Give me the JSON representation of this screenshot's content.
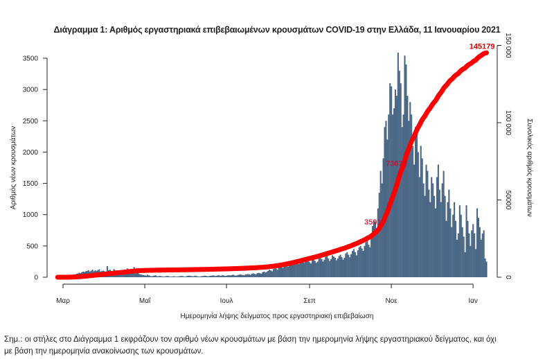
{
  "title": "Διάγραμμα 1: Αριθμός εργαστηριακά επιβεβαιωμένων κρουσμάτων COVID-19 στην Ελλάδα, 11 Ιανουαρίου 2021",
  "note_line1": "Σημ.: οι στήλες στο Διάγραμμα 1 εκφράζουν τον αριθμό νέων κρουσμάτων με βάση την ημερομηνία λήψης εργαστηριακού δείγματος, και όχι",
  "note_line2": "με βάση την ημερομηνία ανακοίνωσης των κρουσμάτων.",
  "chart_data": {
    "type": "bar+line",
    "title": "Διάγραμμα 1: Αριθμός εργαστηριακά επιβεβαιωμένων κρουσμάτων COVID-19 στην Ελλάδα, 11 Ιανουαρίου 2021",
    "xlabel": "Ημερομηνία λήψης δείγματος προς εργαστηριακή επιβεβαίωση",
    "ylabel": "Αριθμός νέων κρουσμάτων",
    "y2label": "Συνολικός αριθμός κρουσμάτων",
    "x_range": [
      "2020-02-26",
      "2021-01-11"
    ],
    "x_ticks": [
      {
        "label": "Μαρ",
        "date": "2020-03-01"
      },
      {
        "label": "Μαΐ",
        "date": "2020-05-01"
      },
      {
        "label": "Ιουλ",
        "date": "2020-07-01"
      },
      {
        "label": "Σεπ",
        "date": "2020-09-01"
      },
      {
        "label": "Νοε",
        "date": "2020-11-01"
      },
      {
        "label": "Ιαν",
        "date": "2021-01-01"
      }
    ],
    "ylim": [
      0,
      3500
    ],
    "y_ticks": [
      "0",
      "500",
      "1000",
      "1500",
      "2000",
      "2500",
      "3000",
      "3500"
    ],
    "y2lim": [
      0,
      150000
    ],
    "y2_ticks": [
      {
        "label": "0",
        "value": 0
      },
      {
        "label": "50000",
        "value": 50000
      },
      {
        "label": "100 000",
        "value": 100000
      },
      {
        "label": "150 000",
        "value": 150000
      }
    ],
    "colors": {
      "bars": "#4b6886",
      "cumulative": "#ff0000"
    },
    "series": [
      {
        "type": "bar",
        "note": "daily new cases by sample date, from 2020-02-26",
        "values": [
          1,
          1,
          0,
          2,
          0,
          3,
          5,
          8,
          12,
          20,
          25,
          30,
          45,
          40,
          55,
          60,
          70,
          65,
          80,
          90,
          85,
          95,
          100,
          110,
          90,
          105,
          120,
          95,
          110,
          100,
          115,
          125,
          90,
          100,
          105,
          95,
          80,
          178,
          110,
          120,
          100,
          95,
          130,
          110,
          90,
          80,
          105,
          100,
          95,
          85,
          120,
          110,
          140,
          110,
          95,
          100,
          80,
          162,
          60,
          90,
          70,
          50,
          45,
          40,
          35,
          30,
          25,
          40,
          30,
          20,
          15,
          20,
          25,
          30,
          18,
          12,
          22,
          16,
          14,
          10,
          12,
          18,
          20,
          15,
          9,
          11,
          14,
          16,
          8,
          10,
          12,
          15,
          20,
          18,
          14,
          9,
          16,
          22,
          25,
          20,
          18,
          14,
          20,
          24,
          16,
          12,
          10,
          15,
          18,
          22,
          25,
          20,
          14,
          18,
          22,
          26,
          30,
          24,
          20,
          28,
          30,
          25,
          22,
          35,
          28,
          20,
          26,
          30,
          32,
          28,
          35,
          40,
          30,
          25,
          32,
          38,
          45,
          40,
          36,
          30,
          42,
          48,
          50,
          45,
          38,
          55,
          60,
          52,
          48,
          65,
          70,
          62,
          58,
          80,
          90,
          75,
          85,
          100,
          120,
          110,
          95,
          130,
          150,
          140,
          120,
          160,
          180,
          170,
          150,
          190,
          210,
          200,
          170,
          220,
          240,
          230,
          200,
          250,
          260,
          240,
          210,
          270,
          280,
          250,
          230,
          260,
          290,
          270,
          240,
          220,
          280,
          300,
          260,
          230,
          250,
          310,
          320,
          290,
          250,
          280,
          330,
          340,
          300,
          260,
          290,
          350,
          330,
          310,
          270,
          300,
          340,
          360,
          320,
          280,
          310,
          380,
          400,
          360,
          320,
          370,
          420,
          450,
          400,
          350,
          430,
          480,
          500,
          460,
          420,
          500,
          560,
          600,
          520,
          480,
          650,
          820,
          900,
          880,
          760,
          1100,
          1350,
          1700,
          1500,
          1900,
          2400,
          2500,
          2200,
          2600,
          3100,
          3050,
          2600,
          2700,
          3000,
          2900,
          3590,
          3300,
          3100,
          2400,
          2600,
          3542,
          3400,
          2900,
          2500,
          2800,
          2600,
          2100,
          1800,
          2400,
          2300,
          2000,
          1600,
          2100,
          1900,
          1500,
          1300,
          1800,
          1700,
          1400,
          1200,
          1600,
          1500,
          1300,
          1100,
          1600,
          1800,
          1400,
          1200,
          1500,
          1700,
          1300,
          900,
          1200,
          1400,
          1100,
          800,
          1000,
          1200,
          900,
          600,
          700,
          1150,
          1000,
          800,
          650,
          400,
          1150,
          900,
          700,
          500,
          750,
          850,
          700,
          450,
          1100,
          950,
          800,
          600,
          700,
          750,
          300,
          250
        ]
      },
      {
        "type": "line",
        "note": "cumulative cases (right axis)",
        "annotations": [
          {
            "label": "35910",
            "value": 35910
          },
          {
            "label": "73679",
            "value": 73679
          },
          {
            "label": "145179",
            "value": 145179
          }
        ]
      }
    ]
  }
}
